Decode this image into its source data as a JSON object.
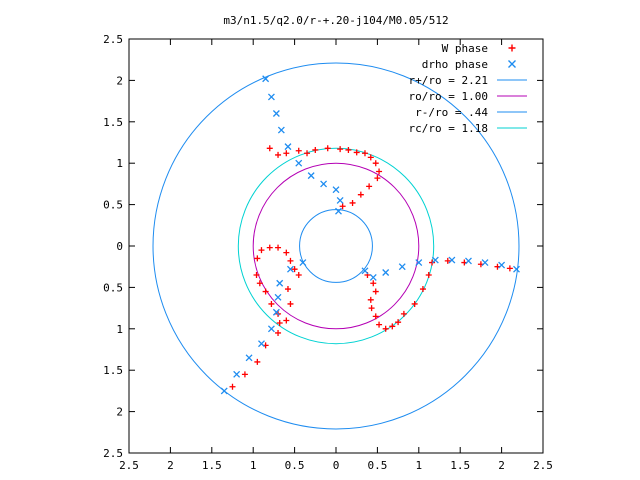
{
  "chart_data": {
    "type": "scatter",
    "title": "m3/n1.5/q2.0/r-+.20-j104/M0.05/512",
    "xlabel": "",
    "ylabel": "",
    "xlim": [
      -2.5,
      2.5
    ],
    "ylim": [
      -2.5,
      2.5
    ],
    "x_ticks": [
      -2.5,
      -2,
      -1.5,
      -1,
      -0.5,
      0,
      0.5,
      1,
      1.5,
      2,
      2.5
    ],
    "y_ticks": [
      -2.5,
      -2,
      -1.5,
      -1,
      -0.5,
      0,
      0.5,
      1,
      1.5,
      2,
      2.5
    ],
    "x_tick_labels": [
      "2.5",
      "2",
      "1.5",
      "1",
      "0.5",
      "0",
      "0.5",
      "1",
      "1.5",
      "2",
      "2.5"
    ],
    "y_tick_labels": [
      "2.5",
      "2",
      "1.5",
      "1",
      "0.5",
      "0",
      "0.5",
      "1",
      "1.5",
      "2",
      "2.5"
    ],
    "grid": false,
    "legend_position": "top-right",
    "series": [
      {
        "name": "W phase",
        "marker": "+",
        "color": "#ff0000",
        "points": [
          [
            -0.8,
            1.18
          ],
          [
            -0.7,
            1.1
          ],
          [
            -0.6,
            1.12
          ],
          [
            -0.45,
            1.15
          ],
          [
            -0.35,
            1.12
          ],
          [
            -0.25,
            1.16
          ],
          [
            -0.1,
            1.18
          ],
          [
            0.05,
            1.17
          ],
          [
            0.15,
            1.16
          ],
          [
            0.25,
            1.13
          ],
          [
            0.35,
            1.12
          ],
          [
            0.42,
            1.07
          ],
          [
            0.48,
            1.0
          ],
          [
            0.52,
            0.9
          ],
          [
            0.5,
            0.82
          ],
          [
            0.4,
            0.72
          ],
          [
            0.3,
            0.62
          ],
          [
            0.2,
            0.52
          ],
          [
            0.08,
            0.48
          ],
          [
            0.38,
            -0.35
          ],
          [
            0.45,
            -0.45
          ],
          [
            0.48,
            -0.55
          ],
          [
            0.42,
            -0.65
          ],
          [
            0.43,
            -0.75
          ],
          [
            0.48,
            -0.85
          ],
          [
            0.52,
            -0.95
          ],
          [
            0.6,
            -1.0
          ],
          [
            0.68,
            -0.97
          ],
          [
            0.75,
            -0.92
          ],
          [
            0.82,
            -0.82
          ],
          [
            0.95,
            -0.7
          ],
          [
            1.05,
            -0.52
          ],
          [
            1.12,
            -0.35
          ],
          [
            1.16,
            -0.2
          ],
          [
            1.35,
            -0.18
          ],
          [
            1.55,
            -0.2
          ],
          [
            1.75,
            -0.22
          ],
          [
            1.95,
            -0.25
          ],
          [
            2.1,
            -0.27
          ],
          [
            -0.45,
            -0.35
          ],
          [
            -0.5,
            -0.28
          ],
          [
            -0.55,
            -0.18
          ],
          [
            -0.6,
            -0.08
          ],
          [
            -0.7,
            -0.02
          ],
          [
            -0.8,
            -0.02
          ],
          [
            -0.9,
            -0.05
          ],
          [
            -0.95,
            -0.15
          ],
          [
            -0.58,
            -0.52
          ],
          [
            -0.55,
            -0.7
          ],
          [
            -0.6,
            -0.9
          ],
          [
            -0.7,
            -1.05
          ],
          [
            -0.85,
            -1.2
          ],
          [
            -0.95,
            -1.4
          ],
          [
            -1.1,
            -1.55
          ],
          [
            -1.25,
            -1.7
          ],
          [
            -0.96,
            -0.35
          ],
          [
            -0.92,
            -0.45
          ],
          [
            -0.85,
            -0.55
          ],
          [
            -0.78,
            -0.7
          ],
          [
            -0.7,
            -0.82
          ],
          [
            -0.68,
            -0.93
          ]
        ]
      },
      {
        "name": "drho phase",
        "marker": "x",
        "color": "#1e8cf0",
        "points": [
          [
            -0.85,
            2.02
          ],
          [
            -0.78,
            1.8
          ],
          [
            -0.72,
            1.6
          ],
          [
            -0.66,
            1.4
          ],
          [
            -0.58,
            1.2
          ],
          [
            -0.45,
            1.0
          ],
          [
            -0.3,
            0.85
          ],
          [
            -0.15,
            0.75
          ],
          [
            0.0,
            0.68
          ],
          [
            0.05,
            0.55
          ],
          [
            0.03,
            0.42
          ],
          [
            0.35,
            -0.3
          ],
          [
            0.45,
            -0.38
          ],
          [
            0.6,
            -0.32
          ],
          [
            0.8,
            -0.25
          ],
          [
            1.0,
            -0.2
          ],
          [
            1.2,
            -0.17
          ],
          [
            1.4,
            -0.17
          ],
          [
            1.6,
            -0.18
          ],
          [
            1.8,
            -0.2
          ],
          [
            2.0,
            -0.23
          ],
          [
            2.18,
            -0.28
          ],
          [
            -0.4,
            -0.2
          ],
          [
            -0.55,
            -0.28
          ],
          [
            -0.68,
            -0.45
          ],
          [
            -0.7,
            -0.62
          ],
          [
            -0.72,
            -0.8
          ],
          [
            -0.78,
            -1.0
          ],
          [
            -0.9,
            -1.18
          ],
          [
            -1.05,
            -1.35
          ],
          [
            -1.2,
            -1.55
          ],
          [
            -1.35,
            -1.75
          ]
        ]
      },
      {
        "name": "r+/ro = 2.21",
        "marker": "circle",
        "color": "#1e8cf0",
        "radius": 2.21
      },
      {
        "name": "ro/ro = 1.00",
        "marker": "circle",
        "color": "#b400b4",
        "radius": 1.0
      },
      {
        "name": "r-/ro = .44",
        "marker": "circle",
        "color": "#1e8cf0",
        "radius": 0.44
      },
      {
        "name": "rc/ro = 1.18",
        "marker": "circle",
        "color": "#00d2d2",
        "radius": 1.18
      }
    ]
  }
}
